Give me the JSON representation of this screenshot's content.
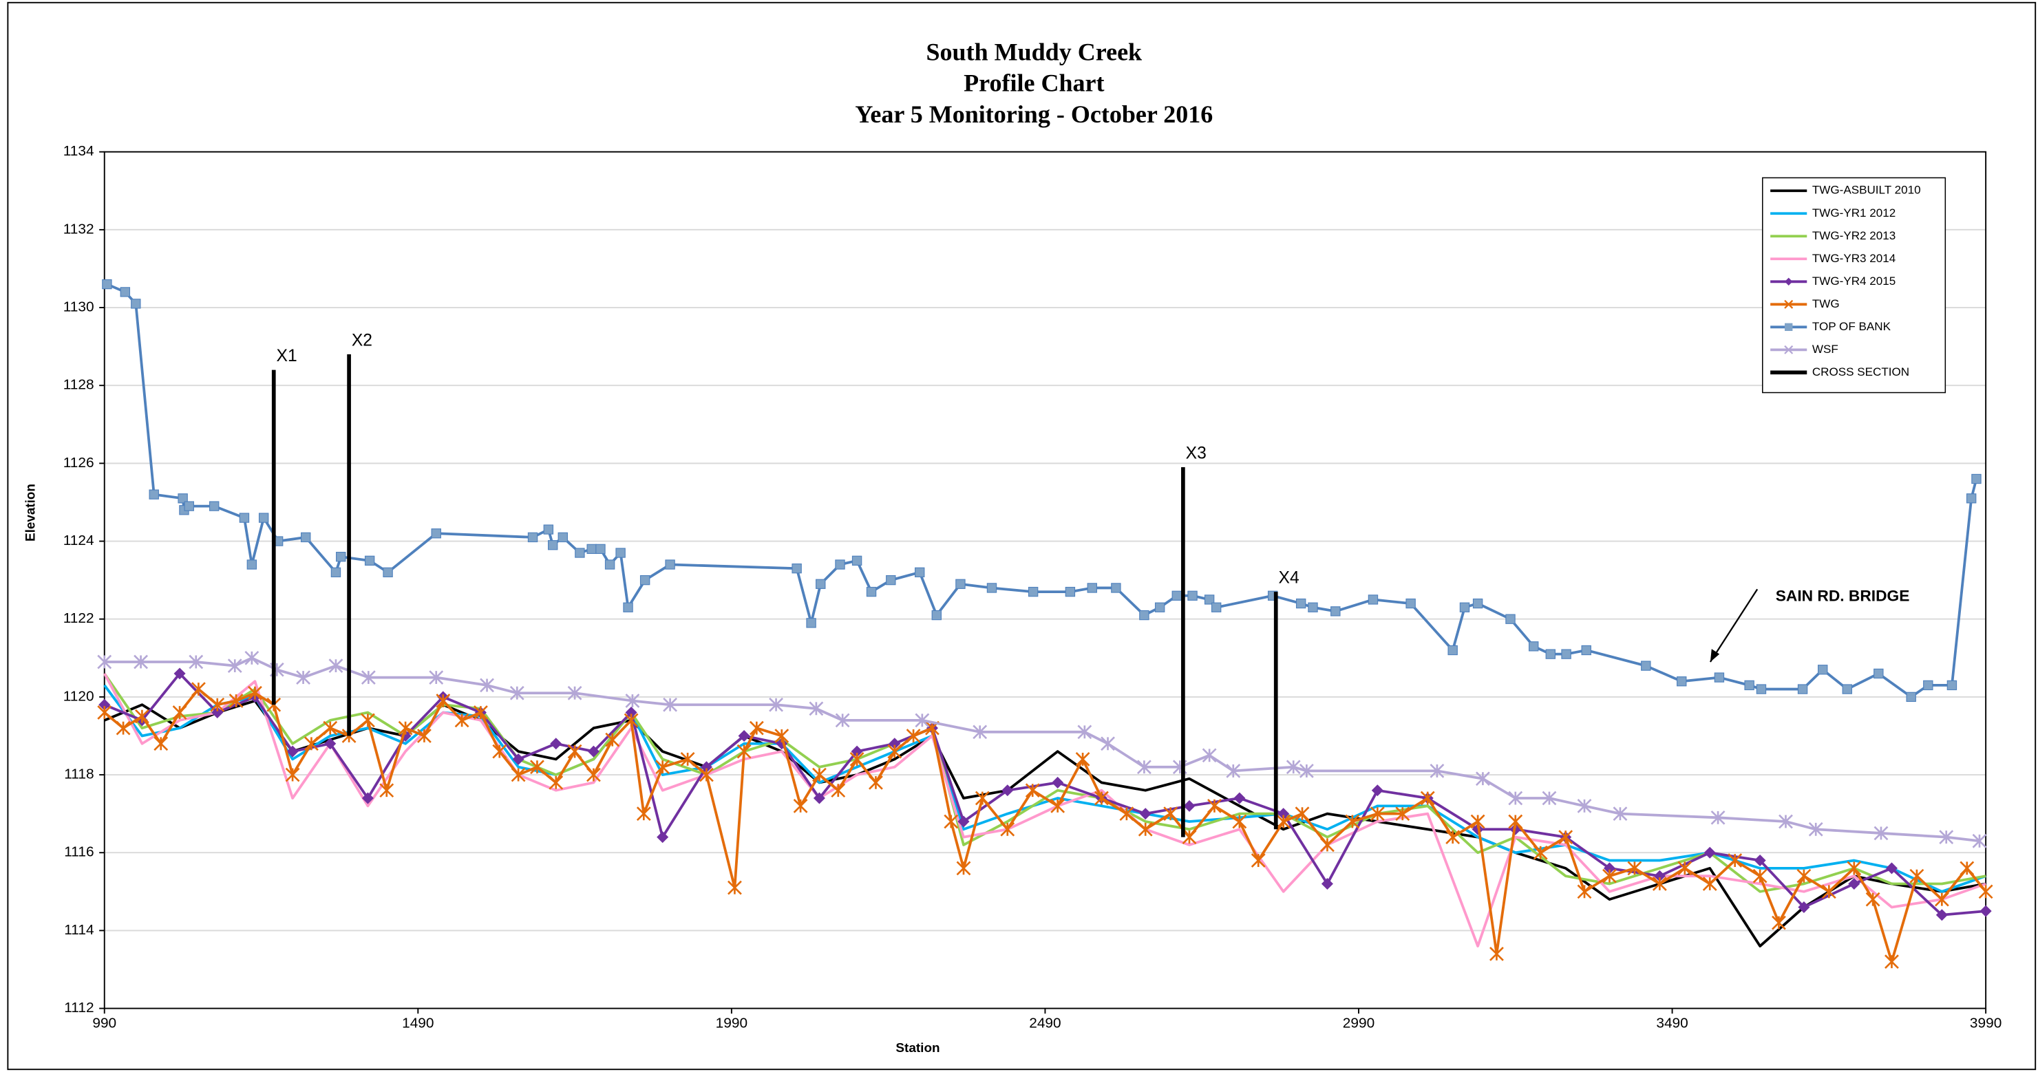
{
  "chart_data": {
    "type": "line",
    "title": [
      "South Muddy Creek",
      "Profile Chart",
      "Year 5 Monitoring - October 2016"
    ],
    "xlabel": "Station",
    "ylabel": "Elevation",
    "annotation": "SAIN RD. BRIDGE",
    "cross_section_labels": [
      "X1",
      "X2",
      "X3",
      "X4"
    ],
    "xlim": [
      990,
      3990
    ],
    "xticks": [
      990,
      1490,
      1990,
      2490,
      2990,
      3490,
      3990
    ],
    "ylim": [
      1112,
      1134
    ],
    "yticks": [
      1112,
      1114,
      1116,
      1118,
      1120,
      1122,
      1124,
      1126,
      1128,
      1130,
      1132,
      1134
    ],
    "grid": true,
    "legend": "upper right",
    "x": [
      990,
      1050,
      1110,
      1170,
      1230,
      1290,
      1350,
      1410,
      1470,
      1530,
      1590,
      1650,
      1710,
      1770,
      1830,
      1880,
      1950,
      2010,
      2070,
      2130,
      2190,
      2250,
      2310,
      2360,
      2430,
      2510,
      2580,
      2650,
      2720,
      2800,
      2870,
      2940,
      3020,
      3100,
      3180,
      3240,
      3320,
      3390,
      3470,
      3550,
      3630,
      3700,
      3780,
      3840,
      3920,
      3990
    ],
    "series": [
      {
        "name": "TWG-ASBUILT 2010",
        "color": "#000000",
        "marker": "none",
        "values": [
          1119.4,
          1119.8,
          1119.2,
          1119.6,
          1119.9,
          1118.6,
          1118.9,
          1119.2,
          1119.0,
          1119.8,
          1119.4,
          1118.6,
          1118.4,
          1119.2,
          1119.4,
          1118.6,
          1118.2,
          1119.0,
          1118.6,
          1117.8,
          1118.0,
          1118.4,
          1119.0,
          1117.4,
          1117.6,
          1118.6,
          1117.8,
          1117.6,
          1117.9,
          1117.2,
          1116.6,
          1117.0,
          1116.8,
          1116.6,
          1116.4,
          1116.0,
          1115.6,
          1114.8,
          1115.2,
          1115.6,
          1113.6,
          1114.6,
          1115.4,
          1115.2,
          1115.0,
          1115.2
        ]
      },
      {
        "name": "TWG-YR1 2012",
        "color": "#00b0f0",
        "marker": "none",
        "values": [
          1120.3,
          1119.0,
          1119.2,
          1119.8,
          1120.0,
          1118.4,
          1119.0,
          1119.2,
          1118.8,
          1119.6,
          1119.5,
          1118.2,
          1118.0,
          1118.4,
          1119.6,
          1118.0,
          1118.2,
          1118.8,
          1118.8,
          1117.8,
          1118.2,
          1118.6,
          1119.0,
          1116.6,
          1117.0,
          1117.4,
          1117.2,
          1117.0,
          1116.8,
          1116.9,
          1117.0,
          1116.6,
          1117.2,
          1117.2,
          1116.4,
          1116.0,
          1116.2,
          1115.8,
          1115.8,
          1116.0,
          1115.6,
          1115.6,
          1115.8,
          1115.6,
          1115.0,
          1115.4
        ]
      },
      {
        "name": "TWG-YR2 2013",
        "color": "#92d050",
        "marker": "none",
        "values": [
          1120.6,
          1119.2,
          1119.5,
          1119.6,
          1120.2,
          1118.8,
          1119.4,
          1119.6,
          1119.0,
          1119.8,
          1119.7,
          1118.4,
          1118.0,
          1118.4,
          1119.6,
          1118.4,
          1118.0,
          1118.6,
          1118.9,
          1118.2,
          1118.4,
          1118.8,
          1119.2,
          1116.2,
          1116.8,
          1117.6,
          1117.4,
          1116.8,
          1116.6,
          1117.0,
          1117.0,
          1116.4,
          1117.0,
          1117.2,
          1116.0,
          1116.4,
          1115.4,
          1115.2,
          1115.6,
          1116.0,
          1115.0,
          1115.2,
          1115.6,
          1115.2,
          1115.2,
          1115.4
        ]
      },
      {
        "name": "TWG-YR3 2014",
        "color": "#ff99cc",
        "marker": "none",
        "values": [
          1120.6,
          1118.8,
          1119.4,
          1119.6,
          1120.4,
          1117.4,
          1118.8,
          1117.2,
          1118.6,
          1119.6,
          1119.4,
          1118.0,
          1117.6,
          1117.8,
          1119.2,
          1117.6,
          1118.0,
          1118.4,
          1118.6,
          1117.4,
          1118.0,
          1118.2,
          1119.0,
          1116.4,
          1116.6,
          1117.2,
          1117.6,
          1116.6,
          1116.2,
          1116.6,
          1115.0,
          1116.2,
          1116.8,
          1117.0,
          1113.6,
          1116.4,
          1116.2,
          1115.0,
          1115.4,
          1115.4,
          1115.2,
          1115.0,
          1115.4,
          1114.6,
          1114.8,
          1115.2
        ]
      },
      {
        "name": "TWG-YR4 2015",
        "color": "#7030a0",
        "marker": "diamond",
        "values": [
          1119.8,
          1119.4,
          1120.6,
          1119.6,
          1120.0,
          1118.6,
          1118.8,
          1117.4,
          1119.0,
          1120.0,
          1119.6,
          1118.4,
          1118.8,
          1118.6,
          1119.6,
          1116.4,
          1118.2,
          1119.0,
          1118.8,
          1117.4,
          1118.6,
          1118.8,
          1119.2,
          1116.8,
          1117.6,
          1117.8,
          1117.4,
          1117.0,
          1117.2,
          1117.4,
          1117.0,
          1115.2,
          1117.6,
          1117.4,
          1116.6,
          1116.6,
          1116.4,
          1115.6,
          1115.4,
          1116.0,
          1115.8,
          1114.6,
          1115.2,
          1115.6,
          1114.4,
          1114.5
        ]
      },
      {
        "name": "TWG",
        "color": "#e46c0a",
        "marker": "x",
        "x": [
          990,
          1020,
          1050,
          1080,
          1110,
          1140,
          1170,
          1200,
          1230,
          1260,
          1290,
          1320,
          1350,
          1380,
          1410,
          1440,
          1470,
          1500,
          1530,
          1560,
          1590,
          1620,
          1650,
          1680,
          1710,
          1740,
          1770,
          1800,
          1830,
          1850,
          1880,
          1920,
          1950,
          1995,
          2010,
          2030,
          2070,
          2100,
          2130,
          2160,
          2190,
          2220,
          2250,
          2280,
          2310,
          2340,
          2360,
          2390,
          2430,
          2470,
          2510,
          2550,
          2580,
          2620,
          2650,
          2690,
          2720,
          2760,
          2800,
          2830,
          2870,
          2900,
          2940,
          2980,
          3020,
          3060,
          3100,
          3140,
          3180,
          3210,
          3240,
          3280,
          3320,
          3350,
          3390,
          3430,
          3470,
          3510,
          3550,
          3590,
          3630,
          3660,
          3700,
          3740,
          3780,
          3810,
          3840,
          3880,
          3920,
          3960,
          3990
        ],
        "values": [
          1119.6,
          1119.2,
          1119.5,
          1118.8,
          1119.6,
          1120.2,
          1119.8,
          1119.9,
          1120.1,
          1119.8,
          1118.0,
          1118.8,
          1119.2,
          1119.0,
          1119.4,
          1117.6,
          1119.2,
          1119.0,
          1119.9,
          1119.4,
          1119.6,
          1118.6,
          1118.0,
          1118.2,
          1117.8,
          1118.6,
          1118.0,
          1118.9,
          1119.4,
          1117.0,
          1118.2,
          1118.4,
          1118.0,
          1115.1,
          1118.6,
          1119.2,
          1119.0,
          1117.2,
          1118.0,
          1117.6,
          1118.4,
          1117.8,
          1118.6,
          1119.0,
          1119.2,
          1116.8,
          1115.6,
          1117.4,
          1116.6,
          1117.6,
          1117.2,
          1118.4,
          1117.4,
          1117.0,
          1116.6,
          1117.0,
          1116.4,
          1117.2,
          1116.8,
          1115.8,
          1116.8,
          1117.0,
          1116.2,
          1116.8,
          1117.0,
          1117.0,
          1117.4,
          1116.4,
          1116.8,
          1113.4,
          1116.8,
          1116.0,
          1116.4,
          1115.0,
          1115.4,
          1115.6,
          1115.2,
          1115.6,
          1115.2,
          1115.8,
          1115.4,
          1114.2,
          1115.4,
          1115.0,
          1115.6,
          1114.8,
          1113.2,
          1115.4,
          1114.8,
          1115.6,
          1115.0
        ]
      },
      {
        "name": "TOP OF BANK",
        "color": "#4f81bd",
        "marker": "square",
        "marker_color": "#7fa3c8",
        "x": [
          994,
          1023,
          1040,
          1069,
          1115,
          1117,
          1125,
          1165,
          1213,
          1225,
          1244,
          1267,
          1311,
          1359,
          1367,
          1413,
          1442,
          1519,
          1673,
          1698,
          1705,
          1721,
          1748,
          1767,
          1781,
          1796,
          1813,
          1825,
          1852,
          1892,
          2094,
          2117,
          2132,
          2163,
          2190,
          2213,
          2244,
          2290,
          2317,
          2355,
          2405,
          2471,
          2530,
          2565,
          2603,
          2648,
          2673,
          2700,
          2725,
          2752,
          2763,
          2853,
          2898,
          2917,
          2953,
          3013,
          3073,
          3140,
          3159,
          3180,
          3232,
          3269,
          3296,
          3321,
          3353,
          3448,
          3505,
          3565,
          3613,
          3632,
          3698,
          3730,
          3769,
          3819,
          3871,
          3898,
          3936,
          3967,
          3975
        ],
        "values": [
          1130.6,
          1130.4,
          1130.1,
          1125.2,
          1125.1,
          1124.8,
          1124.9,
          1124.9,
          1124.6,
          1123.4,
          1124.6,
          1124.0,
          1124.1,
          1123.2,
          1123.6,
          1123.5,
          1123.2,
          1124.2,
          1124.1,
          1124.3,
          1123.9,
          1124.1,
          1123.7,
          1123.8,
          1123.8,
          1123.4,
          1123.7,
          1122.3,
          1123.0,
          1123.4,
          1123.3,
          1121.9,
          1122.9,
          1123.4,
          1123.5,
          1122.7,
          1123.0,
          1123.2,
          1122.1,
          1122.9,
          1122.8,
          1122.7,
          1122.7,
          1122.8,
          1122.8,
          1122.1,
          1122.3,
          1122.6,
          1122.6,
          1122.5,
          1122.3,
          1122.6,
          1122.4,
          1122.3,
          1122.2,
          1122.5,
          1122.4,
          1121.2,
          1122.3,
          1122.4,
          1122.0,
          1121.3,
          1121.1,
          1121.1,
          1121.2,
          1120.8,
          1120.4,
          1120.5,
          1120.3,
          1120.2,
          1120.2,
          1120.7,
          1120.2,
          1120.6,
          1120.0,
          1120.3,
          1120.3,
          1125.1,
          1125.6
        ]
      },
      {
        "name": "WSF",
        "color": "#b4a7d6",
        "marker": "x",
        "x": [
          990,
          1048,
          1136,
          1198,
          1225,
          1265,
          1307,
          1359,
          1411,
          1519,
          1600,
          1648,
          1740,
          1832,
          1892,
          2061,
          2125,
          2167,
          2294,
          2386,
          2553,
          2590,
          2648,
          2705,
          2752,
          2790,
          2886,
          2907,
          3115,
          3188,
          3240,
          3294,
          3350,
          3407,
          3563,
          3671,
          3719,
          3823,
          3927,
          3980
        ],
        "values": [
          1120.9,
          1120.9,
          1120.9,
          1120.8,
          1121.0,
          1120.7,
          1120.5,
          1120.8,
          1120.5,
          1120.5,
          1120.3,
          1120.1,
          1120.1,
          1119.9,
          1119.8,
          1119.8,
          1119.7,
          1119.4,
          1119.4,
          1119.1,
          1119.1,
          1118.8,
          1118.2,
          1118.2,
          1118.5,
          1118.1,
          1118.2,
          1118.1,
          1118.1,
          1117.9,
          1117.4,
          1117.4,
          1117.2,
          1117.0,
          1116.9,
          1116.8,
          1116.6,
          1116.5,
          1116.4,
          1116.3
        ]
      },
      {
        "name": "CROSS SECTION",
        "color": "#000000",
        "marker": "none",
        "width": 3,
        "x": [
          1260,
          1260,
          null,
          1380,
          1380,
          null,
          2710,
          2710,
          null,
          2858,
          2858
        ],
        "values": [
          1119.8,
          1128.4,
          null,
          1119.0,
          1128.8,
          null,
          1116.4,
          1125.9,
          null,
          1116.6,
          1122.7
        ]
      }
    ]
  }
}
